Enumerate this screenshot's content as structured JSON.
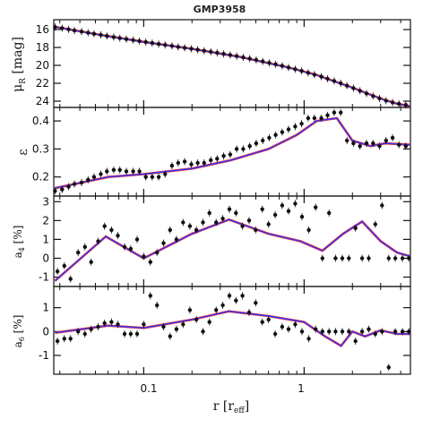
{
  "title": "GMP3958",
  "xlabel": "r [r",
  "xlabel_sub": "eff",
  "xlabel_close": "]",
  "x_tick_labels": [
    "0.1",
    "1"
  ],
  "colors": {
    "model_blue": "#2a3cff",
    "model_red": "#ff2020",
    "points": "#111111"
  },
  "chart_data": [
    {
      "type": "scatter",
      "panel": "mu",
      "ylabel": "μ",
      "ylabel_sub": "R",
      "ylabel_unit": " [mag]",
      "xscale": "log",
      "xlim": [
        0.0275,
        4.6
      ],
      "ylim": [
        24.6,
        15.0
      ],
      "yticks": [
        16,
        18,
        20,
        22,
        24
      ],
      "x": [
        0.028,
        0.031,
        0.034,
        0.037,
        0.041,
        0.045,
        0.049,
        0.054,
        0.059,
        0.065,
        0.071,
        0.078,
        0.086,
        0.094,
        0.103,
        0.113,
        0.124,
        0.136,
        0.15,
        0.164,
        0.18,
        0.198,
        0.217,
        0.238,
        0.262,
        0.287,
        0.315,
        0.346,
        0.38,
        0.417,
        0.458,
        0.503,
        0.552,
        0.606,
        0.665,
        0.73,
        0.8,
        0.88,
        0.965,
        1.06,
        1.16,
        1.28,
        1.4,
        1.54,
        1.69,
        1.85,
        2.03,
        2.23,
        2.45,
        2.69,
        2.95,
        3.24,
        3.56,
        3.9,
        4.3
      ],
      "y": [
        15.72,
        15.85,
        15.98,
        16.11,
        16.23,
        16.36,
        16.48,
        16.6,
        16.72,
        16.84,
        16.96,
        17.07,
        17.18,
        17.29,
        17.4,
        17.51,
        17.62,
        17.72,
        17.83,
        17.94,
        18.04,
        18.15,
        18.26,
        18.37,
        18.48,
        18.6,
        18.72,
        18.84,
        18.97,
        19.11,
        19.25,
        19.4,
        19.56,
        19.72,
        19.88,
        20.06,
        20.24,
        20.43,
        20.62,
        20.83,
        21.04,
        21.26,
        21.5,
        21.74,
        22.0,
        22.27,
        22.55,
        22.84,
        23.14,
        23.43,
        23.7,
        23.95,
        24.15,
        24.3,
        24.42
      ],
      "model_blue": {
        "x": [
          0.028,
          0.05,
          0.1,
          0.2,
          0.4,
          0.8,
          1.2,
          1.6,
          2.0,
          2.6,
          3.2,
          3.8,
          4.6
        ],
        "y": [
          15.72,
          16.52,
          17.4,
          18.17,
          19.08,
          20.26,
          21.1,
          21.9,
          22.5,
          23.3,
          23.9,
          24.3,
          24.58
        ]
      },
      "model_red": {
        "x": [
          0.028,
          0.05,
          0.1,
          0.2,
          0.4,
          0.8,
          1.2,
          1.6,
          2.0,
          2.6,
          3.2,
          3.8,
          4.6
        ],
        "y": [
          15.7,
          16.5,
          17.38,
          18.15,
          19.06,
          20.24,
          21.08,
          21.88,
          22.48,
          23.28,
          23.88,
          24.28,
          24.56
        ]
      }
    },
    {
      "type": "scatter",
      "panel": "ellipticity",
      "ylabel": "ε",
      "xscale": "log",
      "xlim": [
        0.0275,
        4.6
      ],
      "ylim": [
        0.135,
        0.445
      ],
      "yticks": [
        0.2,
        0.3,
        0.4
      ],
      "x": [
        0.028,
        0.031,
        0.034,
        0.037,
        0.041,
        0.045,
        0.049,
        0.054,
        0.059,
        0.065,
        0.071,
        0.078,
        0.086,
        0.094,
        0.103,
        0.113,
        0.124,
        0.136,
        0.15,
        0.164,
        0.18,
        0.198,
        0.217,
        0.238,
        0.262,
        0.287,
        0.315,
        0.346,
        0.38,
        0.417,
        0.458,
        0.503,
        0.552,
        0.606,
        0.665,
        0.73,
        0.8,
        0.88,
        0.965,
        1.06,
        1.16,
        1.28,
        1.4,
        1.54,
        1.69,
        1.85,
        2.03,
        2.23,
        2.45,
        2.69,
        2.95,
        3.24,
        3.56,
        3.9,
        4.3
      ],
      "y": [
        0.15,
        0.155,
        0.165,
        0.175,
        0.18,
        0.19,
        0.2,
        0.21,
        0.22,
        0.225,
        0.225,
        0.22,
        0.22,
        0.22,
        0.2,
        0.2,
        0.2,
        0.21,
        0.24,
        0.25,
        0.255,
        0.245,
        0.25,
        0.25,
        0.26,
        0.265,
        0.275,
        0.28,
        0.3,
        0.3,
        0.31,
        0.32,
        0.33,
        0.34,
        0.35,
        0.36,
        0.37,
        0.38,
        0.39,
        0.41,
        0.41,
        0.41,
        0.42,
        0.43,
        0.43,
        0.33,
        0.32,
        0.31,
        0.32,
        0.32,
        0.31,
        0.33,
        0.34,
        0.315,
        0.31
      ],
      "model_blue": {
        "x": [
          0.028,
          0.06,
          0.1,
          0.2,
          0.35,
          0.6,
          0.9,
          1.2,
          1.6,
          2.0,
          2.6,
          3.2,
          4.6
        ],
        "y": [
          0.16,
          0.2,
          0.21,
          0.23,
          0.26,
          0.3,
          0.35,
          0.4,
          0.41,
          0.33,
          0.31,
          0.32,
          0.315
        ]
      },
      "model_red": {
        "x": [
          0.028,
          0.06,
          0.1,
          0.2,
          0.35,
          0.6,
          0.9,
          1.2,
          1.6,
          2.0,
          2.6,
          3.2,
          4.6
        ],
        "y": [
          0.16,
          0.2,
          0.21,
          0.23,
          0.26,
          0.3,
          0.35,
          0.4,
          0.41,
          0.33,
          0.31,
          0.32,
          0.315
        ]
      }
    },
    {
      "type": "scatter",
      "panel": "a4",
      "ylabel": "a",
      "ylabel_sub": "4",
      "ylabel_unit": " [%]",
      "xscale": "log",
      "xlim": [
        0.0275,
        4.6
      ],
      "ylim": [
        -1.45,
        3.25
      ],
      "yticks": [
        -1,
        0,
        1,
        2,
        3
      ],
      "x": [
        0.029,
        0.032,
        0.035,
        0.039,
        0.043,
        0.047,
        0.052,
        0.057,
        0.063,
        0.069,
        0.076,
        0.083,
        0.091,
        0.1,
        0.11,
        0.121,
        0.133,
        0.146,
        0.16,
        0.176,
        0.194,
        0.213,
        0.234,
        0.257,
        0.283,
        0.311,
        0.342,
        0.376,
        0.413,
        0.454,
        0.499,
        0.549,
        0.6,
        0.66,
        0.73,
        0.8,
        0.88,
        0.97,
        1.07,
        1.18,
        1.3,
        1.43,
        1.57,
        1.73,
        1.9,
        2.09,
        2.3,
        2.53,
        2.78,
        3.06,
        3.37,
        3.7,
        4.1,
        4.5
      ],
      "y": [
        -0.7,
        -0.4,
        -1.1,
        0.3,
        0.6,
        -0.2,
        0.9,
        1.7,
        1.5,
        1.2,
        0.6,
        0.5,
        1.0,
        0.1,
        -0.2,
        0.3,
        0.8,
        1.5,
        1.0,
        1.9,
        1.7,
        1.5,
        1.9,
        2.4,
        1.9,
        2.1,
        2.6,
        2.4,
        1.7,
        2.0,
        1.5,
        2.6,
        1.8,
        2.3,
        2.8,
        2.5,
        2.9,
        2.2,
        1.5,
        2.7,
        0.0,
        2.4,
        0.0,
        0.0,
        0.0,
        1.6,
        0.0,
        0.0,
        1.8,
        2.8,
        0.0,
        0.0,
        0.0,
        0.0
      ],
      "model_blue": {
        "x": [
          0.028,
          0.058,
          0.1,
          0.2,
          0.34,
          0.6,
          0.95,
          1.3,
          1.75,
          2.3,
          3.0,
          3.8,
          4.6
        ],
        "y": [
          -1.2,
          1.15,
          0.0,
          1.3,
          2.05,
          1.3,
          0.9,
          0.4,
          1.3,
          1.95,
          0.9,
          0.3,
          0.1
        ]
      },
      "model_red": {
        "x": [
          0.028,
          0.058,
          0.1,
          0.2,
          0.34,
          0.6,
          0.95,
          1.3,
          1.75,
          2.3,
          3.0,
          3.8,
          4.6
        ],
        "y": [
          -1.2,
          1.15,
          0.0,
          1.3,
          2.05,
          1.3,
          0.9,
          0.4,
          1.3,
          1.95,
          0.9,
          0.3,
          0.1
        ]
      }
    },
    {
      "type": "scatter",
      "panel": "a6",
      "ylabel": "a",
      "ylabel_sub": "6",
      "ylabel_unit": " [%]",
      "xscale": "log",
      "xlim": [
        0.0275,
        4.6
      ],
      "ylim": [
        -1.75,
        1.85
      ],
      "yticks": [
        -1,
        0,
        1
      ],
      "x": [
        0.029,
        0.032,
        0.035,
        0.039,
        0.043,
        0.047,
        0.052,
        0.057,
        0.063,
        0.069,
        0.076,
        0.083,
        0.091,
        0.1,
        0.11,
        0.121,
        0.133,
        0.146,
        0.16,
        0.176,
        0.194,
        0.213,
        0.234,
        0.257,
        0.283,
        0.311,
        0.342,
        0.376,
        0.413,
        0.454,
        0.499,
        0.549,
        0.6,
        0.66,
        0.73,
        0.8,
        0.88,
        0.97,
        1.07,
        1.18,
        1.3,
        1.43,
        1.57,
        1.73,
        1.9,
        2.09,
        2.3,
        2.53,
        2.78,
        3.06,
        3.37,
        3.7,
        4.1,
        4.5
      ],
      "y": [
        -0.4,
        -0.3,
        -0.3,
        0.0,
        -0.1,
        0.1,
        0.2,
        0.35,
        0.4,
        0.3,
        -0.1,
        -0.1,
        -0.1,
        0.3,
        1.5,
        1.1,
        0.2,
        -0.2,
        0.1,
        0.3,
        0.9,
        0.5,
        0.0,
        0.4,
        0.9,
        1.1,
        1.5,
        1.3,
        1.5,
        0.8,
        1.2,
        0.4,
        0.5,
        -0.1,
        0.2,
        0.1,
        0.3,
        0.0,
        -0.3,
        0.1,
        0.0,
        0.0,
        0.0,
        0.0,
        0.0,
        -0.4,
        0.0,
        0.1,
        -0.1,
        0.0,
        -1.5,
        0.0,
        0.0,
        0.0
      ],
      "model_blue": {
        "x": [
          0.028,
          0.06,
          0.1,
          0.2,
          0.34,
          0.6,
          1.0,
          1.35,
          1.7,
          2.0,
          2.4,
          3.0,
          3.8,
          4.6
        ],
        "y": [
          -0.05,
          0.25,
          0.15,
          0.5,
          0.85,
          0.65,
          0.4,
          -0.2,
          -0.6,
          0.0,
          -0.2,
          0.05,
          -0.1,
          -0.1
        ]
      },
      "model_red": {
        "x": [
          0.028,
          0.06,
          0.1,
          0.2,
          0.34,
          0.6,
          1.0,
          1.35,
          1.7,
          2.0,
          2.4,
          3.0,
          3.8,
          4.6
        ],
        "y": [
          -0.05,
          0.25,
          0.15,
          0.5,
          0.85,
          0.65,
          0.4,
          -0.2,
          -0.6,
          0.0,
          -0.2,
          0.05,
          -0.1,
          -0.1
        ]
      }
    }
  ]
}
